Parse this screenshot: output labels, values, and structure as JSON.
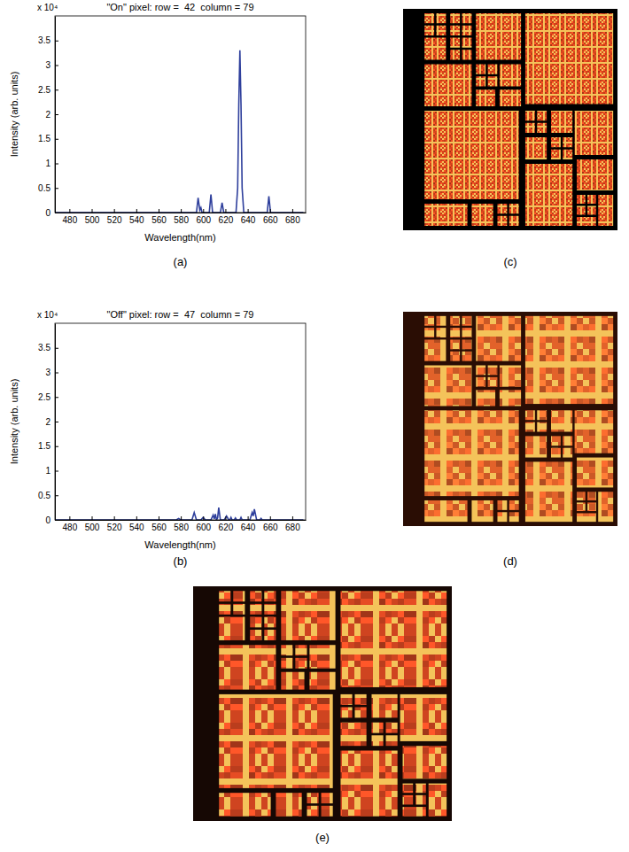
{
  "chart_data": [
    {
      "type": "line",
      "panel_label": "(a)",
      "title": "\"On\" pixel: row =  42  column = 79",
      "x_label": "Wavelength(nm)",
      "y_label": "Intensity (arb. units)",
      "annotations": [
        {
          "text": "x 10⁴"
        }
      ],
      "color": "#2e3f9c",
      "grid": false,
      "xlim": [
        467,
        692
      ],
      "xticks": [
        480,
        500,
        520,
        540,
        560,
        580,
        600,
        620,
        640,
        660,
        680
      ],
      "ylim": [
        0,
        4
      ],
      "yticks": [
        0,
        0.5,
        1,
        1.5,
        2,
        2.5,
        3,
        3.5
      ],
      "x": [
        465,
        592,
        594,
        595.5,
        597,
        598,
        599,
        604,
        605.5,
        607,
        608.5,
        614,
        615.5,
        617,
        618.5,
        628,
        629.5,
        631,
        632,
        633,
        634,
        635,
        636.5,
        656,
        657.5,
        659,
        660.5,
        690
      ],
      "values": [
        0,
        0,
        0,
        0.3,
        0.05,
        0.1,
        0,
        0,
        0,
        0.37,
        0,
        0,
        0,
        0.2,
        0,
        0,
        0,
        0.5,
        2.2,
        3.3,
        2.2,
        0.5,
        0,
        0,
        0,
        0.33,
        0,
        0
      ]
    },
    {
      "type": "line",
      "panel_label": "(b)",
      "title": "\"Off\" pixel: row =  47  column = 79",
      "x_label": "Wavelength(nm)",
      "y_label": "Intensity (arb. units)",
      "annotations": [
        {
          "text": "x 10⁴"
        }
      ],
      "color": "#2e3f9c",
      "grid": false,
      "xlim": [
        467,
        692
      ],
      "xticks": [
        480,
        500,
        520,
        540,
        560,
        580,
        600,
        620,
        640,
        660,
        680
      ],
      "ylim": [
        0,
        4
      ],
      "yticks": [
        0,
        0.5,
        1,
        1.5,
        2,
        2.5,
        3,
        3.5
      ],
      "x": [
        465,
        576,
        578,
        580,
        590,
        592,
        594,
        598,
        600,
        602,
        607,
        609,
        610,
        611,
        612,
        613,
        614,
        615.5,
        619,
        621,
        623,
        624,
        625,
        626,
        628,
        629,
        630,
        633,
        634,
        635,
        642,
        644,
        645,
        646,
        648,
        651,
        652,
        653,
        690
      ],
      "values": [
        0,
        0,
        0.03,
        0,
        0,
        0.15,
        0,
        0,
        0.05,
        0,
        0,
        0.1,
        0.02,
        0.12,
        0,
        0.04,
        0.25,
        0,
        0,
        0.08,
        0,
        0,
        0.05,
        0,
        0,
        0.04,
        0,
        0,
        0.05,
        0,
        0,
        0.15,
        0.08,
        0.22,
        0,
        0,
        0.03,
        0,
        0
      ]
    },
    {
      "type": "image",
      "panel_label": "(c)",
      "color": "#d8431c",
      "tick_labels": false,
      "xlim": [
        0,
        100
      ],
      "ylim": [
        0,
        100
      ],
      "squares": [
        [
          10,
          2,
          4.5,
          4.5
        ],
        [
          15.5,
          2,
          4.5,
          4.5
        ],
        [
          10,
          7.5,
          4.5,
          4.5
        ],
        [
          15.5,
          7.5,
          4.5,
          4.5
        ],
        [
          22,
          2,
          4.5,
          4.5
        ],
        [
          27.5,
          2,
          4.5,
          4.5
        ],
        [
          22,
          7.5,
          4.5,
          4.5
        ],
        [
          27.5,
          7.5,
          4.5,
          4.5
        ],
        [
          10,
          13,
          10,
          10
        ],
        [
          22,
          13,
          4.5,
          4.5
        ],
        [
          27.5,
          13,
          4.5,
          4.5
        ],
        [
          22,
          18.5,
          4.5,
          4.5
        ],
        [
          27.5,
          18.5,
          4.5,
          4.5
        ],
        [
          34,
          2,
          21,
          21
        ],
        [
          10,
          25,
          22,
          19
        ],
        [
          34,
          25,
          4.5,
          4.5
        ],
        [
          39.5,
          25,
          4.5,
          4.5
        ],
        [
          34,
          30.5,
          4.5,
          4.5
        ],
        [
          39.5,
          30.5,
          4.5,
          4.5
        ],
        [
          45,
          25,
          10,
          10
        ],
        [
          34,
          36.5,
          9,
          7.5
        ],
        [
          45,
          36.5,
          10,
          7.5
        ],
        [
          57,
          2,
          41,
          41
        ],
        [
          10,
          46,
          44,
          40
        ],
        [
          10,
          88,
          20,
          10
        ],
        [
          32,
          88,
          10,
          10
        ],
        [
          44,
          88,
          4.5,
          4.5
        ],
        [
          49.5,
          88,
          4.5,
          4.5
        ],
        [
          44,
          93.5,
          4.5,
          4.5
        ],
        [
          49.5,
          93.5,
          4.5,
          4.5
        ],
        [
          57,
          46,
          4.5,
          4.5
        ],
        [
          62.5,
          46,
          4.5,
          4.5
        ],
        [
          57,
          51.5,
          4.5,
          4.5
        ],
        [
          62.5,
          51.5,
          4.5,
          4.5
        ],
        [
          69,
          46,
          10,
          10
        ],
        [
          80,
          46,
          18,
          20
        ],
        [
          57,
          58,
          10,
          10
        ],
        [
          69,
          58,
          4.5,
          4.5
        ],
        [
          74.5,
          58,
          4.5,
          4.5
        ],
        [
          69,
          63.5,
          4.5,
          4.5
        ],
        [
          74.5,
          63.5,
          4.5,
          4.5
        ],
        [
          57,
          70,
          22,
          28
        ],
        [
          81,
          68,
          17,
          14
        ],
        [
          81,
          84,
          4,
          4
        ],
        [
          86,
          84,
          4,
          4
        ],
        [
          81,
          89,
          4,
          4
        ],
        [
          86,
          89,
          4,
          4
        ],
        [
          91,
          84,
          7,
          14
        ],
        [
          81,
          94,
          9,
          4
        ]
      ]
    },
    {
      "type": "image",
      "panel_label": "(d)",
      "color": "#e2622a",
      "tick_labels": false,
      "xlim": [
        0,
        100
      ],
      "ylim": [
        0,
        100
      ],
      "squares": [
        [
          10,
          2,
          4.5,
          4.5
        ],
        [
          15.5,
          2,
          4.5,
          4.5
        ],
        [
          10,
          7.5,
          4.5,
          4.5
        ],
        [
          15.5,
          7.5,
          4.5,
          4.5
        ],
        [
          22,
          2,
          4.5,
          4.5
        ],
        [
          27.5,
          2,
          4.5,
          4.5
        ],
        [
          22,
          7.5,
          4.5,
          4.5
        ],
        [
          27.5,
          7.5,
          4.5,
          4.5
        ],
        [
          10,
          13,
          10,
          10
        ],
        [
          22,
          13,
          4.5,
          4.5
        ],
        [
          27.5,
          13,
          4.5,
          4.5
        ],
        [
          22,
          18.5,
          4.5,
          4.5
        ],
        [
          27.5,
          18.5,
          4.5,
          4.5
        ],
        [
          34,
          2,
          21,
          21
        ],
        [
          10,
          25,
          22,
          19
        ],
        [
          34,
          25,
          4.5,
          4.5
        ],
        [
          39.5,
          25,
          4.5,
          4.5
        ],
        [
          34,
          30.5,
          4.5,
          4.5
        ],
        [
          39.5,
          30.5,
          4.5,
          4.5
        ],
        [
          45,
          25,
          10,
          10
        ],
        [
          34,
          36.5,
          9,
          7.5
        ],
        [
          45,
          36.5,
          10,
          7.5
        ],
        [
          57,
          2,
          41,
          41
        ],
        [
          10,
          46,
          44,
          40
        ],
        [
          10,
          88,
          20,
          10
        ],
        [
          32,
          88,
          10,
          10
        ],
        [
          44,
          88,
          4.5,
          4.5
        ],
        [
          49.5,
          88,
          4.5,
          4.5
        ],
        [
          44,
          93.5,
          4.5,
          4.5
        ],
        [
          49.5,
          93.5,
          4.5,
          4.5
        ],
        [
          57,
          46,
          4.5,
          4.5
        ],
        [
          62.5,
          46,
          4.5,
          4.5
        ],
        [
          57,
          51.5,
          4.5,
          4.5
        ],
        [
          62.5,
          51.5,
          4.5,
          4.5
        ],
        [
          69,
          46,
          10,
          10
        ],
        [
          80,
          46,
          18,
          20
        ],
        [
          57,
          58,
          10,
          10
        ],
        [
          69,
          58,
          4.5,
          4.5
        ],
        [
          74.5,
          58,
          4.5,
          4.5
        ],
        [
          69,
          63.5,
          4.5,
          4.5
        ],
        [
          74.5,
          63.5,
          4.5,
          4.5
        ],
        [
          57,
          70,
          22,
          28
        ],
        [
          81,
          68,
          17,
          14
        ],
        [
          81,
          84,
          4,
          4
        ],
        [
          86,
          84,
          4,
          4
        ],
        [
          81,
          89,
          4,
          4
        ],
        [
          86,
          89,
          4,
          4
        ],
        [
          91,
          84,
          7,
          14
        ],
        [
          81,
          94,
          9,
          4
        ]
      ]
    },
    {
      "type": "image",
      "panel_label": "(e)",
      "color": "#cf4420",
      "tick_labels": false,
      "xlim": [
        0,
        100
      ],
      "ylim": [
        0,
        100
      ],
      "squares": [
        [
          10,
          2,
          4.5,
          4.5
        ],
        [
          15.5,
          2,
          4.5,
          4.5
        ],
        [
          10,
          7.5,
          4.5,
          4.5
        ],
        [
          15.5,
          7.5,
          4.5,
          4.5
        ],
        [
          22,
          2,
          4.5,
          4.5
        ],
        [
          27.5,
          2,
          4.5,
          4.5
        ],
        [
          22,
          7.5,
          4.5,
          4.5
        ],
        [
          27.5,
          7.5,
          4.5,
          4.5
        ],
        [
          10,
          13,
          10,
          10
        ],
        [
          22,
          13,
          4.5,
          4.5
        ],
        [
          27.5,
          13,
          4.5,
          4.5
        ],
        [
          22,
          18.5,
          4.5,
          4.5
        ],
        [
          27.5,
          18.5,
          4.5,
          4.5
        ],
        [
          34,
          2,
          21,
          21
        ],
        [
          10,
          25,
          22,
          19
        ],
        [
          34,
          25,
          4.5,
          4.5
        ],
        [
          39.5,
          25,
          4.5,
          4.5
        ],
        [
          34,
          30.5,
          4.5,
          4.5
        ],
        [
          39.5,
          30.5,
          4.5,
          4.5
        ],
        [
          45,
          25,
          10,
          10
        ],
        [
          34,
          36.5,
          9,
          7.5
        ],
        [
          45,
          36.5,
          10,
          7.5
        ],
        [
          57,
          2,
          41,
          41
        ],
        [
          10,
          46,
          44,
          40
        ],
        [
          10,
          88,
          20,
          10
        ],
        [
          32,
          88,
          10,
          10
        ],
        [
          44,
          88,
          4.5,
          4.5
        ],
        [
          49.5,
          88,
          4.5,
          4.5
        ],
        [
          44,
          93.5,
          4.5,
          4.5
        ],
        [
          49.5,
          93.5,
          4.5,
          4.5
        ],
        [
          57,
          46,
          4.5,
          4.5
        ],
        [
          62.5,
          46,
          4.5,
          4.5
        ],
        [
          57,
          51.5,
          4.5,
          4.5
        ],
        [
          62.5,
          51.5,
          4.5,
          4.5
        ],
        [
          69,
          46,
          10,
          10
        ],
        [
          80,
          46,
          18,
          20
        ],
        [
          57,
          58,
          10,
          10
        ],
        [
          69,
          58,
          4.5,
          4.5
        ],
        [
          74.5,
          58,
          4.5,
          4.5
        ],
        [
          69,
          63.5,
          4.5,
          4.5
        ],
        [
          74.5,
          63.5,
          4.5,
          4.5
        ],
        [
          57,
          70,
          22,
          28
        ],
        [
          81,
          68,
          17,
          14
        ],
        [
          81,
          84,
          4,
          4
        ],
        [
          86,
          84,
          4,
          4
        ],
        [
          81,
          89,
          4,
          4
        ],
        [
          86,
          89,
          4,
          4
        ],
        [
          91,
          84,
          7,
          14
        ],
        [
          81,
          94,
          9,
          4
        ]
      ]
    }
  ]
}
